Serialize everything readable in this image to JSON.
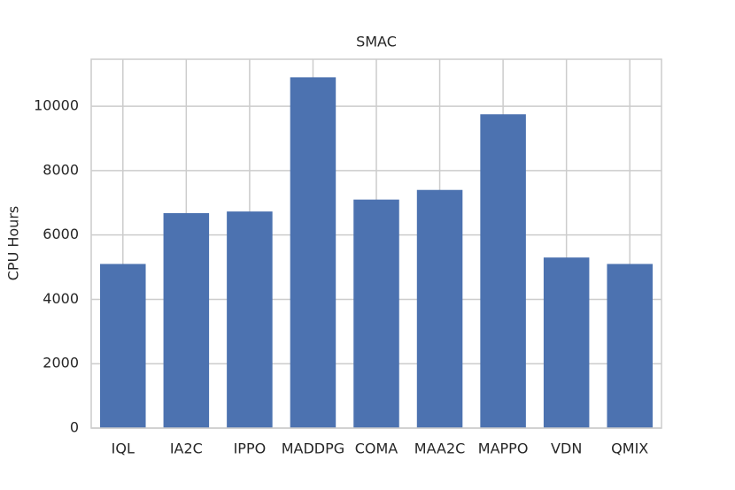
{
  "chart_data": {
    "type": "bar",
    "title": "SMAC",
    "y_label": "CPU Hours",
    "categories": [
      "IQL",
      "IA2C",
      "IPPO",
      "MADDPG",
      "COMA",
      "MAA2C",
      "MAPPO",
      "VDN",
      "QMIX"
    ],
    "values": [
      5100,
      6680,
      6730,
      10900,
      7100,
      7400,
      9750,
      5300,
      5100
    ],
    "color": "#4c72b0",
    "ylim": [
      0,
      11460
    ],
    "yticks": [
      0,
      2000,
      4000,
      6000,
      8000,
      10000
    ],
    "grid": true
  }
}
